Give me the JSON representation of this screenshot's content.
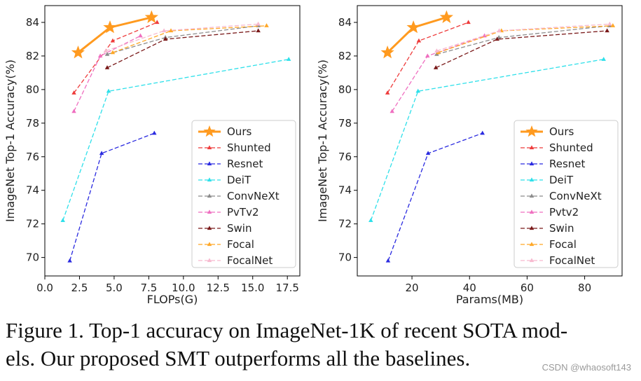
{
  "chart_data": [
    {
      "type": "line",
      "xlabel": "FLOPs(G)",
      "ylabel": "ImageNet Top-1 Accuracy(%)",
      "xlim": [
        0,
        18.4
      ],
      "ylim": [
        68.9,
        85.0
      ],
      "xticks": [
        0.0,
        2.5,
        5.0,
        7.5,
        10.0,
        12.5,
        15.0,
        17.5
      ],
      "xtick_labels": [
        "0.0",
        "2.5",
        "5.0",
        "7.5",
        "10.0",
        "12.5",
        "15.0",
        "17.5"
      ],
      "yticks": [
        70,
        72,
        74,
        76,
        78,
        80,
        82,
        84
      ],
      "ytick_labels": [
        "70",
        "72",
        "74",
        "76",
        "78",
        "80",
        "82",
        "84"
      ],
      "grid": false,
      "legend_position": "lower-right",
      "series": [
        {
          "name": "Ours",
          "color": "#ff9a1f",
          "marker": "star",
          "style": "solid",
          "x": [
            2.4,
            4.7,
            7.7
          ],
          "y": [
            82.2,
            83.7,
            84.3
          ]
        },
        {
          "name": "Shunted",
          "color": "#ee3b3b",
          "marker": "triangle",
          "style": "dashed",
          "x": [
            2.1,
            4.9,
            8.1
          ],
          "y": [
            79.8,
            82.9,
            84.0
          ]
        },
        {
          "name": "Resnet",
          "color": "#2a2ae0",
          "marker": "triangle",
          "style": "dashed",
          "x": [
            1.8,
            4.1,
            7.9
          ],
          "y": [
            69.8,
            76.2,
            77.4
          ]
        },
        {
          "name": "DeiT",
          "color": "#2ee0ea",
          "marker": "triangle",
          "style": "dashed",
          "x": [
            1.3,
            4.6,
            17.6
          ],
          "y": [
            72.2,
            79.9,
            81.8
          ]
        },
        {
          "name": "ConvNeXt",
          "color": "#8c8c8c",
          "marker": "triangle",
          "style": "dashed",
          "x": [
            4.5,
            8.7,
            15.4
          ],
          "y": [
            82.1,
            83.1,
            83.8
          ]
        },
        {
          "name": "PvTv2",
          "color": "#ef6fc0",
          "marker": "triangle",
          "style": "dashed",
          "x": [
            2.1,
            4.0,
            6.9
          ],
          "y": [
            78.7,
            82.0,
            83.2
          ]
        },
        {
          "name": "Swin",
          "color": "#7a1a1a",
          "marker": "triangle",
          "style": "dashed",
          "x": [
            4.5,
            8.7,
            15.4
          ],
          "y": [
            81.3,
            83.0,
            83.5
          ]
        },
        {
          "name": "Focal",
          "color": "#ffa726",
          "marker": "triangle",
          "style": "dashed",
          "x": [
            4.9,
            9.1,
            16.0
          ],
          "y": [
            82.2,
            83.5,
            83.8
          ]
        },
        {
          "name": "FocalNet",
          "color": "#f7b9cf",
          "marker": "triangle",
          "style": "dashed",
          "x": [
            4.4,
            8.6,
            15.4
          ],
          "y": [
            82.3,
            83.5,
            83.9
          ]
        }
      ]
    },
    {
      "type": "line",
      "xlabel": "Params(MB)",
      "ylabel": "ImageNet Top-1 Accuracy(%)",
      "xlim": [
        1.0,
        93.0
      ],
      "ylim": [
        68.9,
        85.0
      ],
      "xticks": [
        20,
        40,
        60,
        80
      ],
      "xtick_labels": [
        "20",
        "40",
        "60",
        "80"
      ],
      "yticks": [
        70,
        72,
        74,
        76,
        78,
        80,
        82,
        84
      ],
      "ytick_labels": [
        "70",
        "72",
        "74",
        "76",
        "78",
        "80",
        "82",
        "84"
      ],
      "grid": false,
      "legend_position": "lower-right",
      "series": [
        {
          "name": "Ours",
          "color": "#ff9a1f",
          "marker": "star",
          "style": "solid",
          "x": [
            11.5,
            20.5,
            32.0
          ],
          "y": [
            82.2,
            83.7,
            84.3
          ]
        },
        {
          "name": "Shunted",
          "color": "#ee3b3b",
          "marker": "triangle",
          "style": "dashed",
          "x": [
            11.5,
            22.4,
            39.6
          ],
          "y": [
            79.8,
            82.9,
            84.0
          ]
        },
        {
          "name": "Resnet",
          "color": "#2a2ae0",
          "marker": "triangle",
          "style": "dashed",
          "x": [
            11.7,
            25.6,
            44.5
          ],
          "y": [
            69.8,
            76.2,
            77.4
          ]
        },
        {
          "name": "DeiT",
          "color": "#2ee0ea",
          "marker": "triangle",
          "style": "dashed",
          "x": [
            5.7,
            22.1,
            86.6
          ],
          "y": [
            72.2,
            79.9,
            81.8
          ]
        },
        {
          "name": "ConvNeXt",
          "color": "#8c8c8c",
          "marker": "triangle",
          "style": "dashed",
          "x": [
            28.6,
            50.2,
            88.6
          ],
          "y": [
            82.1,
            83.1,
            83.8
          ]
        },
        {
          "name": "Pvtv2",
          "color": "#ef6fc0",
          "marker": "triangle",
          "style": "dashed",
          "x": [
            13.1,
            25.4,
            45.2
          ],
          "y": [
            78.7,
            82.0,
            83.2
          ]
        },
        {
          "name": "Swin",
          "color": "#7a1a1a",
          "marker": "triangle",
          "style": "dashed",
          "x": [
            28.3,
            49.6,
            87.8
          ],
          "y": [
            81.3,
            83.0,
            83.5
          ]
        },
        {
          "name": "Focal",
          "color": "#ffa726",
          "marker": "triangle",
          "style": "dashed",
          "x": [
            29.1,
            51.1,
            89.8
          ],
          "y": [
            82.2,
            83.5,
            83.8
          ]
        },
        {
          "name": "FocalNet",
          "color": "#f7b9cf",
          "marker": "triangle",
          "style": "dashed",
          "x": [
            28.6,
            50.3,
            88.7
          ],
          "y": [
            82.3,
            83.5,
            83.9
          ]
        }
      ]
    }
  ],
  "caption": {
    "line1": "Figure 1. Top-1 accuracy on ImageNet-1K of recent SOTA mod-",
    "line2": "els. Our proposed SMT outperforms all the baselines."
  },
  "watermark": "CSDN @whaosoft143"
}
